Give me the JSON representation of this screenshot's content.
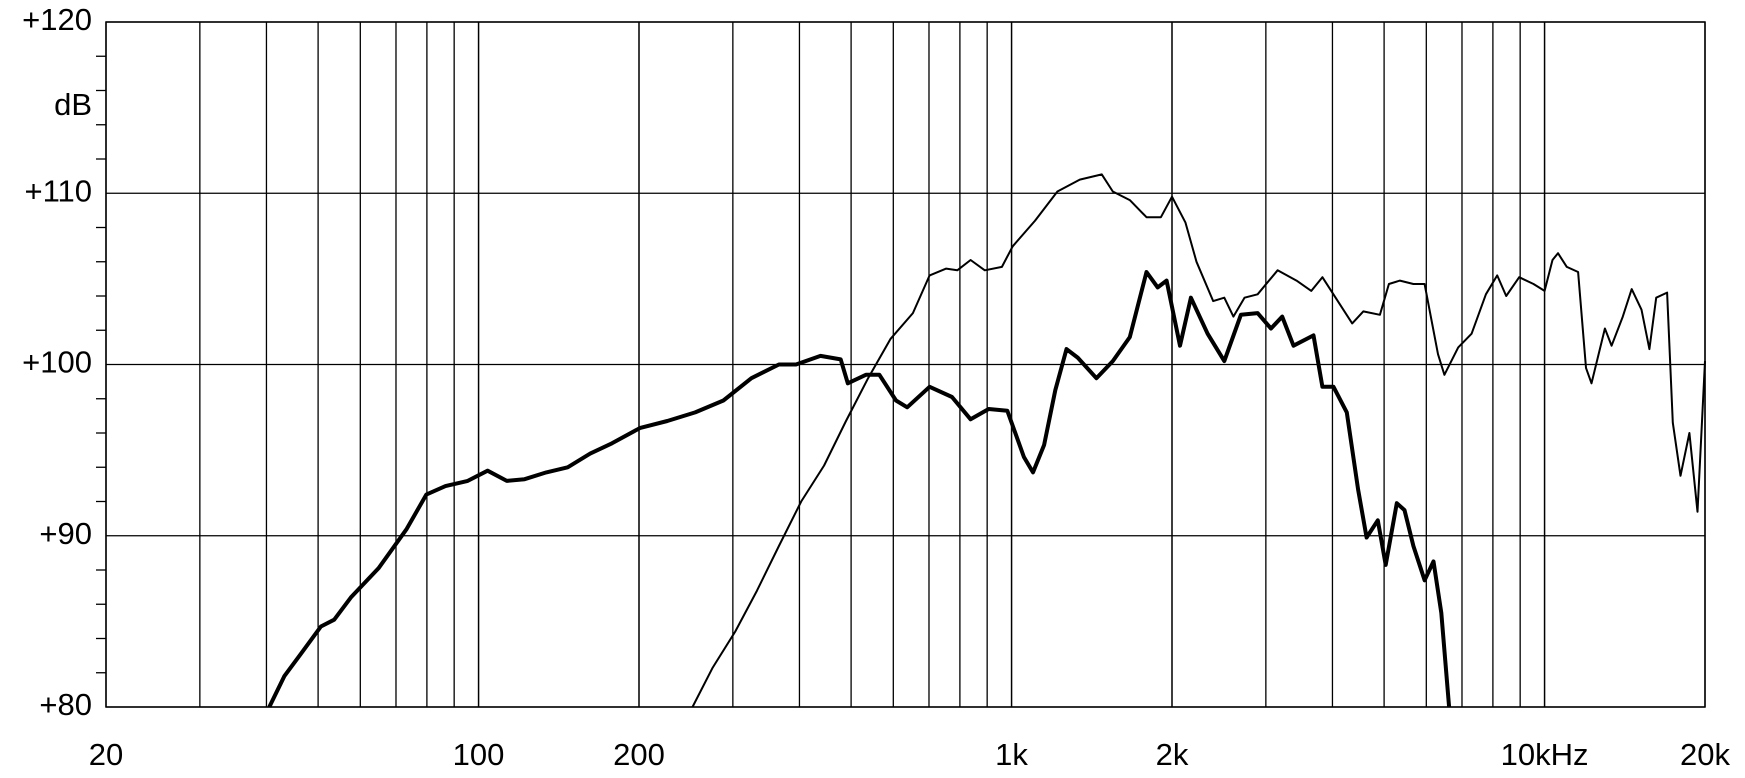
{
  "chart_data": {
    "type": "line",
    "x_scale": "log",
    "y_label": "dB",
    "xlim": [
      20,
      20000
    ],
    "ylim": [
      80,
      120
    ],
    "xticks": [
      20,
      100,
      200,
      {
        "value": 1000,
        "label": "1k"
      },
      {
        "value": 2000,
        "label": "2k"
      },
      {
        "value": 10000,
        "label": "10kHz"
      },
      {
        "value": 20000,
        "label": "20k"
      }
    ],
    "xgrid": [
      30,
      40,
      50,
      60,
      70,
      80,
      90,
      100,
      200,
      300,
      400,
      500,
      600,
      700,
      800,
      900,
      1000,
      2000,
      3000,
      4000,
      5000,
      6000,
      7000,
      8000,
      9000,
      10000
    ],
    "yticks": [
      {
        "value": 80,
        "label": "+80"
      },
      {
        "value": 90,
        "label": "+90"
      },
      {
        "value": 100,
        "label": "+100"
      },
      {
        "value": 110,
        "label": "+110"
      },
      {
        "value": 120,
        "label": "+120"
      }
    ],
    "yminorticks": [
      82,
      84,
      86,
      88,
      92,
      94,
      96,
      98,
      102,
      104,
      106,
      108,
      112,
      114,
      116,
      118
    ],
    "grid": true,
    "series": [
      {
        "color": "#000000",
        "line_width": 4,
        "x": [
          40.5,
          43.2,
          46.4,
          50.6,
          53.6,
          57.6,
          64.9,
          73.3,
          79.8,
          86.7,
          95.4,
          104,
          113,
          122,
          134,
          147,
          162,
          178,
          201,
          226,
          255,
          288,
          325,
          366,
          394,
          438,
          478,
          493,
          533,
          565,
          607,
          637,
          702,
          773,
          838,
          906,
          982,
          1055,
          1097,
          1151,
          1208,
          1268,
          1331,
          1443,
          1549,
          1667,
          1791,
          1880,
          1954,
          2070,
          2170,
          2332,
          2507,
          2693,
          2895,
          3068,
          3220,
          3380,
          3685,
          3830,
          4018,
          4255,
          4468,
          4636,
          4866,
          5034,
          5283,
          5461,
          5674,
          5956,
          6190,
          6401,
          6620
        ],
        "values": [
          80,
          81.8,
          83.1,
          84.7,
          85.1,
          86.4,
          88.1,
          90.4,
          92.4,
          92.9,
          93.2,
          93.8,
          93.2,
          93.3,
          93.7,
          94.0,
          94.8,
          95.4,
          96.3,
          96.7,
          97.2,
          97.9,
          99.2,
          100,
          100,
          100.5,
          100.3,
          98.9,
          99.4,
          99.4,
          97.9,
          97.5,
          98.7,
          98.1,
          96.8,
          97.4,
          97.3,
          94.6,
          93.7,
          95.3,
          98.5,
          100.9,
          100.4,
          99.2,
          100.2,
          101.6,
          105.4,
          104.5,
          104.9,
          101.1,
          103.9,
          101.8,
          100.2,
          102.9,
          103,
          102.1,
          102.8,
          101.1,
          101.7,
          98.7,
          98.7,
          97.2,
          92.7,
          89.9,
          90.9,
          88.3,
          91.9,
          91.5,
          89.4,
          87.4,
          88.5,
          85.5,
          80
        ]
      },
      {
        "color": "#000000",
        "line_width": 2,
        "x": [
          252,
          275,
          303,
          333,
          366,
          403,
          445,
          489,
          538,
          593,
          653,
          702,
          754,
          791,
          838,
          891,
          959,
          1005,
          1107,
          1219,
          1343,
          1477,
          1549,
          1667,
          1791,
          1906,
          2000,
          2119,
          2223,
          2390,
          2507,
          2607,
          2736,
          2895,
          3156,
          3425,
          3650,
          3830,
          4055,
          4357,
          4571,
          4911,
          5105,
          5354,
          5674,
          5956,
          6311,
          6489,
          6886,
          7296,
          7762,
          8149,
          8472,
          8964,
          9533,
          10000,
          10350,
          10600,
          11010,
          11560,
          11960,
          12250,
          12980,
          13360,
          14020,
          14570,
          15200,
          15730,
          16200,
          16980,
          17400,
          17990,
          18700,
          19360,
          20000
        ],
        "values": [
          80,
          82.3,
          84.4,
          86.8,
          89.4,
          92.0,
          94.1,
          96.7,
          99.2,
          101.5,
          103,
          105.2,
          105.6,
          105.5,
          106.1,
          105.5,
          105.7,
          106.9,
          108.4,
          110.1,
          110.8,
          111.1,
          110.1,
          109.6,
          108.6,
          108.6,
          109.8,
          108.3,
          106,
          103.7,
          103.9,
          102.8,
          103.9,
          104.1,
          105.5,
          104.9,
          104.3,
          105.1,
          103.9,
          102.4,
          103.1,
          102.9,
          104.7,
          104.9,
          104.7,
          104.7,
          100.6,
          99.4,
          101,
          101.8,
          104.1,
          105.2,
          104,
          105.1,
          104.7,
          104.3,
          106.1,
          106.5,
          105.7,
          105.4,
          99.8,
          98.9,
          102.1,
          101.1,
          102.8,
          104.4,
          103.2,
          100.9,
          103.9,
          104.2,
          96.6,
          93.5,
          96,
          91.4,
          100.2
        ]
      }
    ]
  }
}
